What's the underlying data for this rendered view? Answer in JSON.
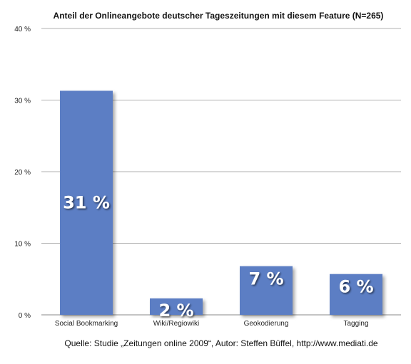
{
  "chart_data": {
    "type": "bar",
    "title": "Anteil der Onlineangebote deutscher Tageszeitungen mit diesem Feature (N=265)",
    "categories": [
      "Social Bookmarking",
      "Wiki/Regiowiki",
      "Geokodierung",
      "Tagging"
    ],
    "values": [
      31.3,
      2.3,
      6.8,
      5.7
    ],
    "data_labels": [
      "31 %",
      "2 %",
      "7 %",
      "6 %"
    ],
    "yticks": [
      "0 %",
      "10 %",
      "20 %",
      "30 %",
      "40 %"
    ],
    "ytick_values": [
      0,
      10,
      20,
      30,
      40
    ],
    "ylim": [
      0,
      40
    ],
    "grid": true,
    "legend": "none",
    "bar_color": "#5b7ec4",
    "source": "Quelle: Studie „Zeitungen online 2009“, Autor: Steffen Büffel, http://www.mediati.de"
  }
}
